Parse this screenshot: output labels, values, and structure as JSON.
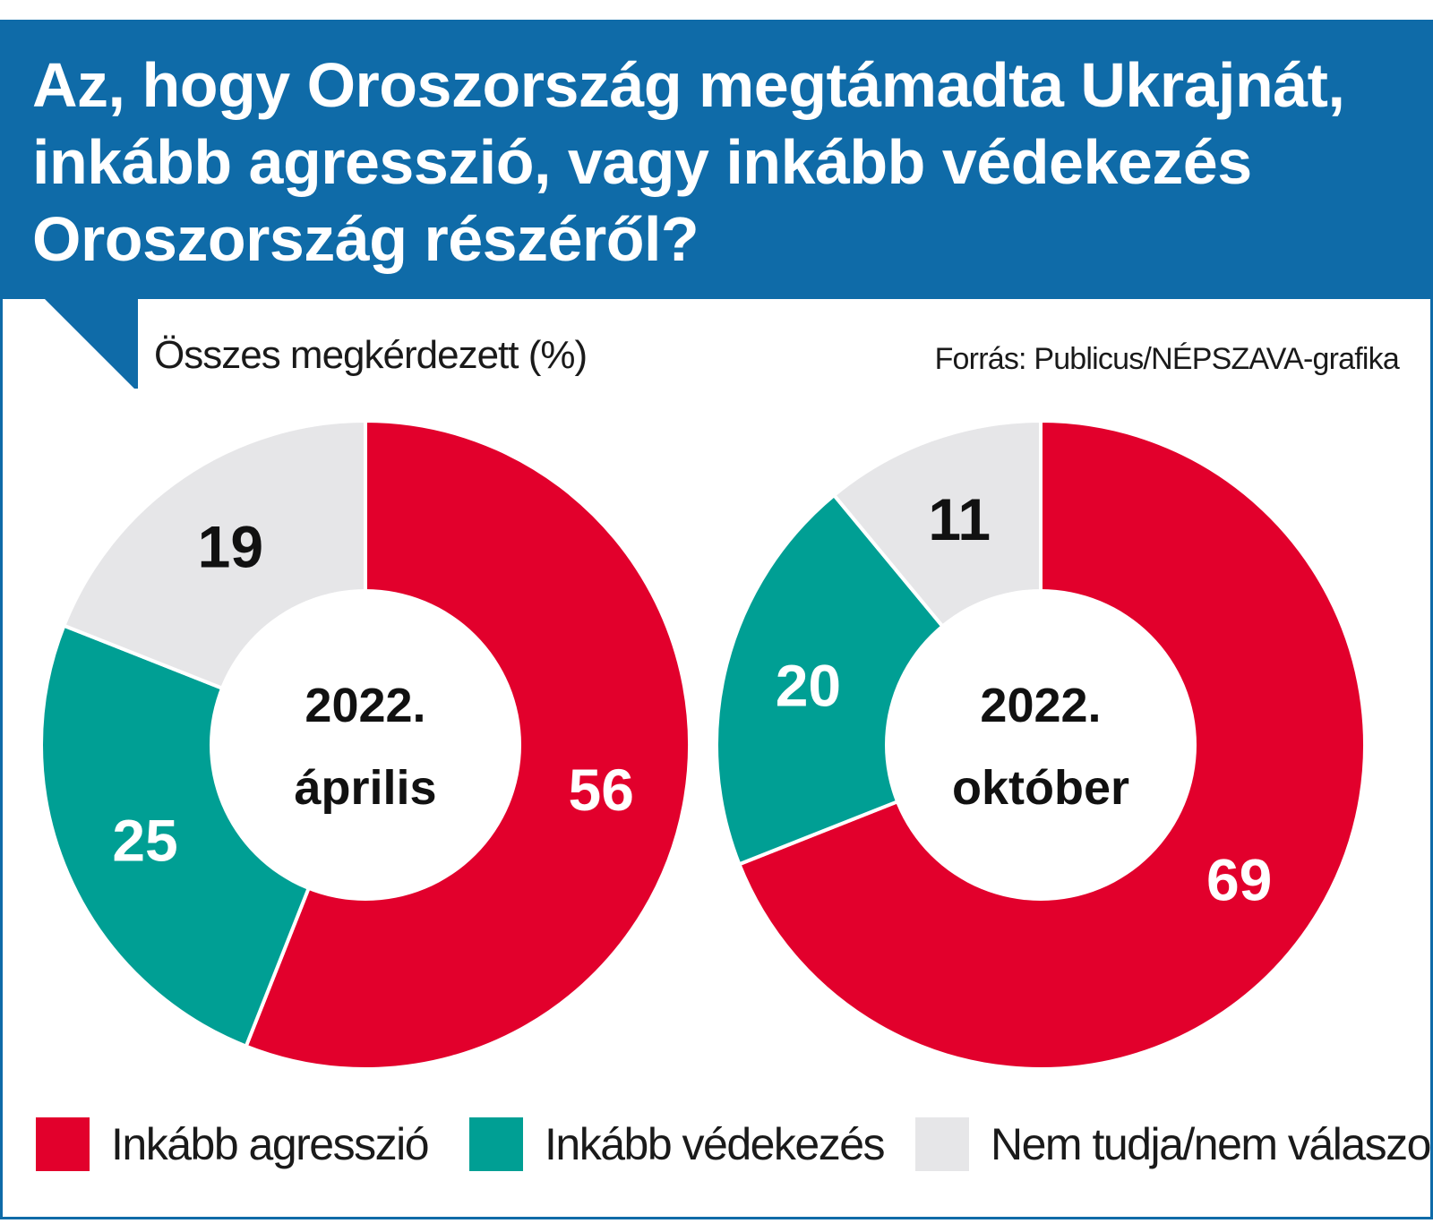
{
  "title": "Az, hogy Oroszország megtámadta Ukrajnát, inkább agresszió, vagy inkább védekezés Oroszország részéről?",
  "subtitle": "Összes megkérdezett (%)",
  "source": "Forrás: Publicus/NÉPSZAVA-grafika",
  "colors": {
    "header": "#0f6ba8",
    "agresszio": "#e2002c",
    "vedekezes": "#009f94",
    "nem_tudja": "#e6e6e8"
  },
  "legend": [
    {
      "label": "Inkább agresszió",
      "color": "#e2002c"
    },
    {
      "label": "Inkább védekezés",
      "color": "#009f94"
    },
    {
      "label": "Nem tudja/nem válaszol",
      "color": "#e6e6e8"
    }
  ],
  "chart_data": [
    {
      "type": "pie",
      "center_label": [
        "2022.",
        "április"
      ],
      "categories": [
        "Inkább agresszió",
        "Inkább védekezés",
        "Nem tudja/nem válaszol"
      ],
      "values": [
        56,
        25,
        19
      ],
      "colors": [
        "#e2002c",
        "#009f94",
        "#e6e6e8"
      ],
      "label_colors": [
        "#ffffff",
        "#ffffff",
        "#111111"
      ]
    },
    {
      "type": "pie",
      "center_label": [
        "2022.",
        "október"
      ],
      "categories": [
        "Inkább agresszió",
        "Inkább védekezés",
        "Nem tudja/nem válaszol"
      ],
      "values": [
        69,
        20,
        11
      ],
      "colors": [
        "#e2002c",
        "#009f94",
        "#e6e6e8"
      ],
      "label_colors": [
        "#ffffff",
        "#ffffff",
        "#111111"
      ]
    }
  ]
}
